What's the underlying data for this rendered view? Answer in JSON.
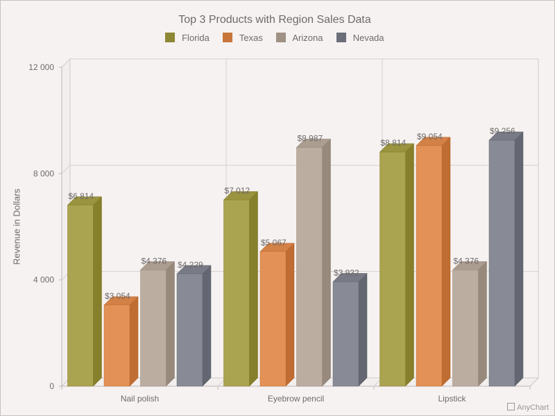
{
  "chart_data": {
    "type": "bar",
    "title": "Top 3 Products with Region Sales Data",
    "xlabel": "",
    "ylabel": "Revenue in Dollars",
    "categories": [
      "Nail polish",
      "Eyebrow pencil",
      "Lipstick"
    ],
    "series": [
      {
        "name": "Florida",
        "color": "#8e8733",
        "values": [
          6814,
          7012,
          8814
        ],
        "labels": [
          "$6 814",
          "$7 012",
          "$8 814"
        ]
      },
      {
        "name": "Texas",
        "color": "#c7753a",
        "values": [
          3054,
          5067,
          9054
        ],
        "labels": [
          "$3 054",
          "$5 067",
          "$9 054"
        ]
      },
      {
        "name": "Arizona",
        "color": "#9f9184",
        "values": [
          4376,
          8987,
          4376
        ],
        "labels": [
          "$4 376",
          "$8 987",
          "$4 376"
        ]
      },
      {
        "name": "Nevada",
        "color": "#6c6f7a",
        "values": [
          4229,
          3932,
          9256
        ],
        "labels": [
          "$4 229",
          "$3 932",
          "$9 256"
        ]
      }
    ],
    "ylim": [
      0,
      12000
    ],
    "yticks": [
      "0",
      "4 000",
      "8 000",
      "12 000"
    ],
    "grid": true,
    "legend_position": "top",
    "style": "3d-column"
  },
  "credit": "AnyChart"
}
